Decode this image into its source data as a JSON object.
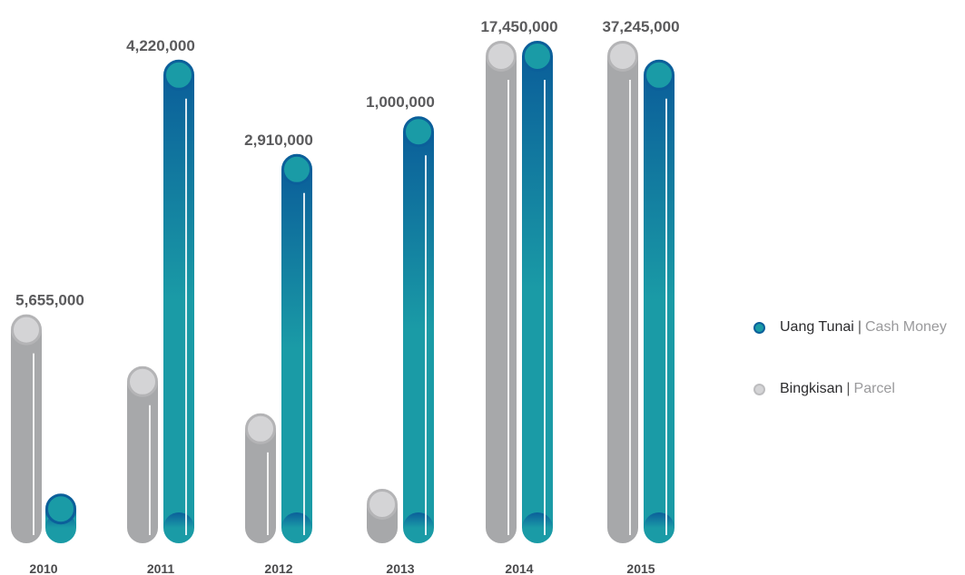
{
  "chart_data": {
    "type": "bar",
    "title": "",
    "xlabel": "",
    "ylabel": "",
    "categories": [
      "2010",
      "2011",
      "2012",
      "2013",
      "2014",
      "2015"
    ],
    "value_labels": [
      "5,655,000",
      "4,220,000",
      "2,910,000",
      "1,000,000",
      "17,450,000",
      "37,245,000"
    ],
    "series": [
      {
        "name": "Bingkisan | Parcel",
        "values": [
          0.42,
          0.31,
          0.21,
          0.05,
          1.0,
          1.0
        ]
      },
      {
        "name": "Uang Tunai | Cash Money",
        "values": [
          0.04,
          0.96,
          0.76,
          0.84,
          1.0,
          0.96
        ]
      }
    ],
    "value_scale": "relative height (unscaled pictorial bars; only totals are labeled)",
    "grid": false,
    "legend_position": "right"
  },
  "legend": {
    "items": [
      {
        "main": "Uang Tunai",
        "separator": "|",
        "sub": "Cash Money",
        "color": "#1a9ba6"
      },
      {
        "main": "Bingkisan",
        "separator": "|",
        "sub": "Parcel",
        "color": "#d4d4d6"
      }
    ]
  },
  "colors": {
    "parcel_bar": "#a7a8aa",
    "parcel_dot": "#d4d4d6",
    "cash_top": "#0b5f9a",
    "cash_bottom": "#1a9ba6",
    "cash_dot": "#1a9ba6",
    "cash_dot_ring": "#0b5f9a",
    "label_text": "#5a5a5c"
  }
}
